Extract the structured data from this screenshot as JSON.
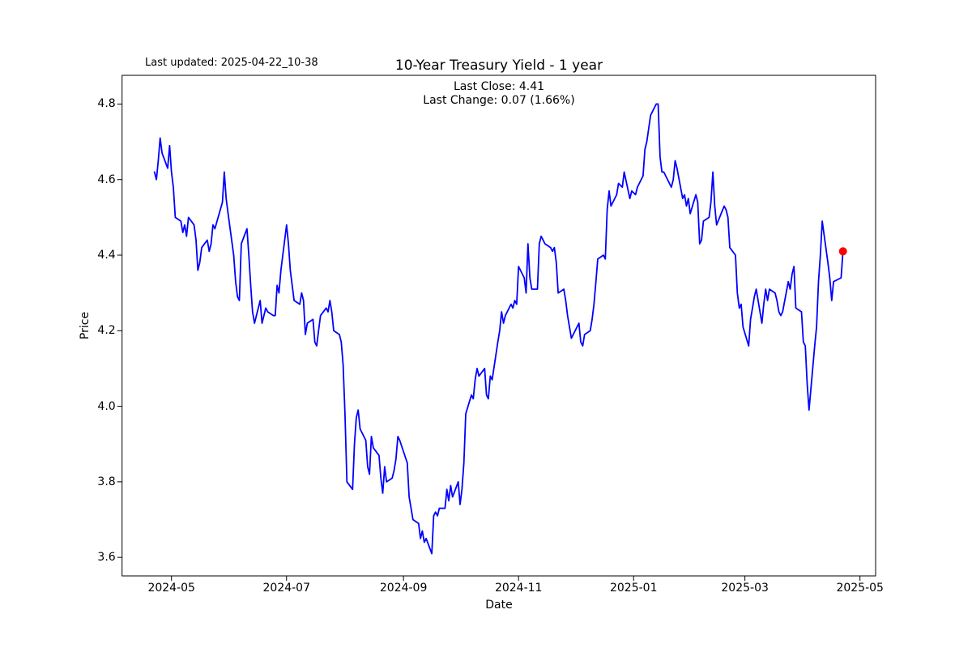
{
  "figure": {
    "last_updated": "Last updated: 2025-04-22_10-38",
    "title": "10-Year Treasury Yield - 1 year",
    "subtitle_line1": "Last Close: 4.41",
    "subtitle_line2": "Last Change: 0.07 (1.66%)",
    "xlabel": "Date",
    "ylabel": "Price"
  },
  "chart_data": {
    "type": "line",
    "title": "10-Year Treasury Yield - 1 year",
    "xlabel": "Date",
    "ylabel": "Price",
    "annotations": [
      "Last Close: 4.41",
      "Last Change: 0.07 (1.66%)",
      "Last updated: 2025-04-22_10-38"
    ],
    "last_close": 4.41,
    "last_change": "0.07 (1.66%)",
    "line_color": "#0000ff",
    "marker_color": "#ff0000",
    "grid": false,
    "legend": "none",
    "x_tick_labels": [
      "2024-05",
      "2024-07",
      "2024-09",
      "2024-11",
      "2025-01",
      "2025-03",
      "2025-05"
    ],
    "y_tick_labels": [
      "4.8",
      "4.6",
      "4.4",
      "4.2",
      "4.0",
      "3.8",
      "3.6"
    ],
    "ylim": [
      3.551,
      4.876
    ],
    "xlim": [
      "2024-04-04",
      "2025-05-10"
    ],
    "series": [
      {
        "name": "10-Year Treasury Yield",
        "points": [
          [
            "2024-04-22",
            4.62
          ],
          [
            "2024-04-23",
            4.6
          ],
          [
            "2024-04-24",
            4.65
          ],
          [
            "2024-04-25",
            4.71
          ],
          [
            "2024-04-26",
            4.67
          ],
          [
            "2024-04-29",
            4.63
          ],
          [
            "2024-04-30",
            4.69
          ],
          [
            "2024-05-01",
            4.62
          ],
          [
            "2024-05-02",
            4.58
          ],
          [
            "2024-05-03",
            4.5
          ],
          [
            "2024-05-06",
            4.49
          ],
          [
            "2024-05-07",
            4.46
          ],
          [
            "2024-05-08",
            4.48
          ],
          [
            "2024-05-09",
            4.45
          ],
          [
            "2024-05-10",
            4.5
          ],
          [
            "2024-05-13",
            4.48
          ],
          [
            "2024-05-14",
            4.44
          ],
          [
            "2024-05-15",
            4.36
          ],
          [
            "2024-05-16",
            4.38
          ],
          [
            "2024-05-17",
            4.42
          ],
          [
            "2024-05-20",
            4.44
          ],
          [
            "2024-05-21",
            4.41
          ],
          [
            "2024-05-22",
            4.43
          ],
          [
            "2024-05-23",
            4.48
          ],
          [
            "2024-05-24",
            4.47
          ],
          [
            "2024-05-28",
            4.54
          ],
          [
            "2024-05-29",
            4.62
          ],
          [
            "2024-05-30",
            4.55
          ],
          [
            "2024-05-31",
            4.51
          ],
          [
            "2024-06-03",
            4.4
          ],
          [
            "2024-06-04",
            4.33
          ],
          [
            "2024-06-05",
            4.29
          ],
          [
            "2024-06-06",
            4.28
          ],
          [
            "2024-06-07",
            4.43
          ],
          [
            "2024-06-10",
            4.47
          ],
          [
            "2024-06-11",
            4.4
          ],
          [
            "2024-06-12",
            4.32
          ],
          [
            "2024-06-13",
            4.25
          ],
          [
            "2024-06-14",
            4.22
          ],
          [
            "2024-06-17",
            4.28
          ],
          [
            "2024-06-18",
            4.22
          ],
          [
            "2024-06-20",
            4.26
          ],
          [
            "2024-06-21",
            4.25
          ],
          [
            "2024-06-24",
            4.24
          ],
          [
            "2024-06-25",
            4.24
          ],
          [
            "2024-06-26",
            4.32
          ],
          [
            "2024-06-27",
            4.3
          ],
          [
            "2024-06-28",
            4.36
          ],
          [
            "2024-07-01",
            4.48
          ],
          [
            "2024-07-02",
            4.43
          ],
          [
            "2024-07-03",
            4.36
          ],
          [
            "2024-07-05",
            4.28
          ],
          [
            "2024-07-08",
            4.27
          ],
          [
            "2024-07-09",
            4.3
          ],
          [
            "2024-07-10",
            4.28
          ],
          [
            "2024-07-11",
            4.19
          ],
          [
            "2024-07-12",
            4.22
          ],
          [
            "2024-07-15",
            4.23
          ],
          [
            "2024-07-16",
            4.17
          ],
          [
            "2024-07-17",
            4.16
          ],
          [
            "2024-07-18",
            4.2
          ],
          [
            "2024-07-19",
            4.24
          ],
          [
            "2024-07-22",
            4.26
          ],
          [
            "2024-07-23",
            4.25
          ],
          [
            "2024-07-24",
            4.28
          ],
          [
            "2024-07-25",
            4.25
          ],
          [
            "2024-07-26",
            4.2
          ],
          [
            "2024-07-29",
            4.19
          ],
          [
            "2024-07-30",
            4.17
          ],
          [
            "2024-07-31",
            4.11
          ],
          [
            "2024-08-01",
            3.98
          ],
          [
            "2024-08-02",
            3.8
          ],
          [
            "2024-08-05",
            3.78
          ],
          [
            "2024-08-06",
            3.9
          ],
          [
            "2024-08-07",
            3.97
          ],
          [
            "2024-08-08",
            3.99
          ],
          [
            "2024-08-09",
            3.94
          ],
          [
            "2024-08-12",
            3.91
          ],
          [
            "2024-08-13",
            3.84
          ],
          [
            "2024-08-14",
            3.82
          ],
          [
            "2024-08-15",
            3.92
          ],
          [
            "2024-08-16",
            3.89
          ],
          [
            "2024-08-19",
            3.87
          ],
          [
            "2024-08-20",
            3.81
          ],
          [
            "2024-08-21",
            3.77
          ],
          [
            "2024-08-22",
            3.84
          ],
          [
            "2024-08-23",
            3.8
          ],
          [
            "2024-08-26",
            3.81
          ],
          [
            "2024-08-27",
            3.83
          ],
          [
            "2024-08-28",
            3.86
          ],
          [
            "2024-08-29",
            3.92
          ],
          [
            "2024-08-30",
            3.91
          ],
          [
            "2024-09-03",
            3.85
          ],
          [
            "2024-09-04",
            3.76
          ],
          [
            "2024-09-05",
            3.73
          ],
          [
            "2024-09-06",
            3.7
          ],
          [
            "2024-09-09",
            3.69
          ],
          [
            "2024-09-10",
            3.65
          ],
          [
            "2024-09-11",
            3.67
          ],
          [
            "2024-09-12",
            3.64
          ],
          [
            "2024-09-13",
            3.65
          ],
          [
            "2024-09-16",
            3.61
          ],
          [
            "2024-09-17",
            3.71
          ],
          [
            "2024-09-18",
            3.72
          ],
          [
            "2024-09-19",
            3.71
          ],
          [
            "2024-09-20",
            3.73
          ],
          [
            "2024-09-23",
            3.73
          ],
          [
            "2024-09-24",
            3.78
          ],
          [
            "2024-09-25",
            3.75
          ],
          [
            "2024-09-26",
            3.79
          ],
          [
            "2024-09-27",
            3.76
          ],
          [
            "2024-09-30",
            3.8
          ],
          [
            "2024-10-01",
            3.74
          ],
          [
            "2024-10-02",
            3.78
          ],
          [
            "2024-10-03",
            3.85
          ],
          [
            "2024-10-04",
            3.98
          ],
          [
            "2024-10-07",
            4.03
          ],
          [
            "2024-10-08",
            4.02
          ],
          [
            "2024-10-09",
            4.07
          ],
          [
            "2024-10-10",
            4.1
          ],
          [
            "2024-10-11",
            4.08
          ],
          [
            "2024-10-14",
            4.1
          ],
          [
            "2024-10-15",
            4.03
          ],
          [
            "2024-10-16",
            4.02
          ],
          [
            "2024-10-17",
            4.08
          ],
          [
            "2024-10-18",
            4.07
          ],
          [
            "2024-10-21",
            4.17
          ],
          [
            "2024-10-22",
            4.2
          ],
          [
            "2024-10-23",
            4.25
          ],
          [
            "2024-10-24",
            4.22
          ],
          [
            "2024-10-25",
            4.24
          ],
          [
            "2024-10-28",
            4.27
          ],
          [
            "2024-10-29",
            4.26
          ],
          [
            "2024-10-30",
            4.28
          ],
          [
            "2024-10-31",
            4.27
          ],
          [
            "2024-11-01",
            4.37
          ],
          [
            "2024-11-04",
            4.34
          ],
          [
            "2024-11-05",
            4.3
          ],
          [
            "2024-11-06",
            4.43
          ],
          [
            "2024-11-07",
            4.34
          ],
          [
            "2024-11-08",
            4.31
          ],
          [
            "2024-11-11",
            4.31
          ],
          [
            "2024-11-12",
            4.43
          ],
          [
            "2024-11-13",
            4.45
          ],
          [
            "2024-11-14",
            4.44
          ],
          [
            "2024-11-15",
            4.43
          ],
          [
            "2024-11-18",
            4.42
          ],
          [
            "2024-11-19",
            4.41
          ],
          [
            "2024-11-20",
            4.42
          ],
          [
            "2024-11-21",
            4.38
          ],
          [
            "2024-11-22",
            4.3
          ],
          [
            "2024-11-25",
            4.31
          ],
          [
            "2024-11-26",
            4.28
          ],
          [
            "2024-11-27",
            4.24
          ],
          [
            "2024-11-29",
            4.18
          ],
          [
            "2024-12-02",
            4.21
          ],
          [
            "2024-12-03",
            4.22
          ],
          [
            "2024-12-04",
            4.17
          ],
          [
            "2024-12-05",
            4.16
          ],
          [
            "2024-12-06",
            4.19
          ],
          [
            "2024-12-09",
            4.2
          ],
          [
            "2024-12-10",
            4.23
          ],
          [
            "2024-12-11",
            4.27
          ],
          [
            "2024-12-12",
            4.33
          ],
          [
            "2024-12-13",
            4.39
          ],
          [
            "2024-12-16",
            4.4
          ],
          [
            "2024-12-17",
            4.39
          ],
          [
            "2024-12-18",
            4.52
          ],
          [
            "2024-12-19",
            4.57
          ],
          [
            "2024-12-20",
            4.53
          ],
          [
            "2024-12-23",
            4.56
          ],
          [
            "2024-12-24",
            4.59
          ],
          [
            "2024-12-26",
            4.58
          ],
          [
            "2024-12-27",
            4.62
          ],
          [
            "2024-12-30",
            4.55
          ],
          [
            "2024-12-31",
            4.57
          ],
          [
            "2025-01-02",
            4.56
          ],
          [
            "2025-01-03",
            4.58
          ],
          [
            "2025-01-06",
            4.61
          ],
          [
            "2025-01-07",
            4.68
          ],
          [
            "2025-01-08",
            4.7
          ],
          [
            "2025-01-10",
            4.77
          ],
          [
            "2025-01-13",
            4.8
          ],
          [
            "2025-01-14",
            4.8
          ],
          [
            "2025-01-15",
            4.66
          ],
          [
            "2025-01-16",
            4.62
          ],
          [
            "2025-01-17",
            4.62
          ],
          [
            "2025-01-21",
            4.58
          ],
          [
            "2025-01-22",
            4.6
          ],
          [
            "2025-01-23",
            4.65
          ],
          [
            "2025-01-24",
            4.63
          ],
          [
            "2025-01-27",
            4.55
          ],
          [
            "2025-01-28",
            4.56
          ],
          [
            "2025-01-29",
            4.53
          ],
          [
            "2025-01-30",
            4.55
          ],
          [
            "2025-01-31",
            4.51
          ],
          [
            "2025-02-03",
            4.56
          ],
          [
            "2025-02-04",
            4.54
          ],
          [
            "2025-02-05",
            4.43
          ],
          [
            "2025-02-06",
            4.44
          ],
          [
            "2025-02-07",
            4.49
          ],
          [
            "2025-02-10",
            4.5
          ],
          [
            "2025-02-11",
            4.54
          ],
          [
            "2025-02-12",
            4.62
          ],
          [
            "2025-02-13",
            4.53
          ],
          [
            "2025-02-14",
            4.48
          ],
          [
            "2025-02-18",
            4.53
          ],
          [
            "2025-02-19",
            4.52
          ],
          [
            "2025-02-20",
            4.5
          ],
          [
            "2025-02-21",
            4.42
          ],
          [
            "2025-02-24",
            4.4
          ],
          [
            "2025-02-25",
            4.3
          ],
          [
            "2025-02-26",
            4.26
          ],
          [
            "2025-02-27",
            4.27
          ],
          [
            "2025-02-28",
            4.21
          ],
          [
            "2025-03-03",
            4.16
          ],
          [
            "2025-03-04",
            4.23
          ],
          [
            "2025-03-05",
            4.26
          ],
          [
            "2025-03-06",
            4.29
          ],
          [
            "2025-03-07",
            4.31
          ],
          [
            "2025-03-10",
            4.22
          ],
          [
            "2025-03-11",
            4.27
          ],
          [
            "2025-03-12",
            4.31
          ],
          [
            "2025-03-13",
            4.28
          ],
          [
            "2025-03-14",
            4.31
          ],
          [
            "2025-03-17",
            4.3
          ],
          [
            "2025-03-18",
            4.28
          ],
          [
            "2025-03-19",
            4.25
          ],
          [
            "2025-03-20",
            4.24
          ],
          [
            "2025-03-21",
            4.25
          ],
          [
            "2025-03-24",
            4.33
          ],
          [
            "2025-03-25",
            4.31
          ],
          [
            "2025-03-26",
            4.35
          ],
          [
            "2025-03-27",
            4.37
          ],
          [
            "2025-03-28",
            4.26
          ],
          [
            "2025-03-31",
            4.25
          ],
          [
            "2025-04-01",
            4.17
          ],
          [
            "2025-04-02",
            4.16
          ],
          [
            "2025-04-03",
            4.06
          ],
          [
            "2025-04-04",
            3.99
          ],
          [
            "2025-04-07",
            4.16
          ],
          [
            "2025-04-08",
            4.21
          ],
          [
            "2025-04-09",
            4.33
          ],
          [
            "2025-04-10",
            4.4
          ],
          [
            "2025-04-11",
            4.49
          ],
          [
            "2025-04-14",
            4.38
          ],
          [
            "2025-04-15",
            4.34
          ],
          [
            "2025-04-16",
            4.28
          ],
          [
            "2025-04-17",
            4.33
          ],
          [
            "2025-04-21",
            4.34
          ],
          [
            "2025-04-22",
            4.41
          ]
        ]
      }
    ],
    "last_point": [
      "2025-04-22",
      4.41
    ]
  }
}
